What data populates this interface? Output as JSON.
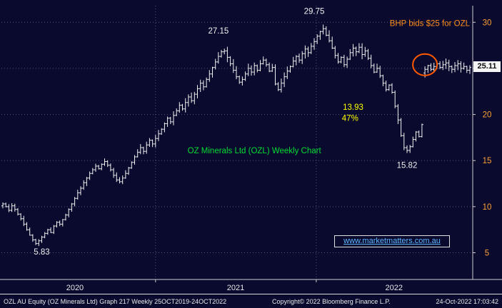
{
  "chart_data": {
    "type": "ohlc",
    "title": "OZ Minerals Ltd (OZL) Weekly Chart",
    "x_labels": [
      "2020",
      "2021",
      "2022"
    ],
    "y_ticks": [
      5,
      10,
      15,
      20,
      25,
      30
    ],
    "ylim": [
      2.1,
      31.8
    ],
    "grid": true,
    "weekly_closes": [
      10.3,
      10.0,
      9.6,
      10.1,
      9.7,
      9.2,
      8.7,
      8.1,
      7.5,
      6.9,
      6.4,
      6.0,
      6.3,
      6.7,
      7.1,
      7.5,
      7.2,
      7.9,
      8.3,
      8.1,
      8.6,
      9.1,
      9.7,
      10.3,
      10.9,
      11.5,
      12.0,
      12.6,
      13.1,
      13.6,
      14.0,
      14.4,
      14.1,
      14.6,
      14.9,
      14.5,
      14.0,
      13.4,
      12.9,
      12.7,
      13.1,
      13.6,
      14.2,
      14.8,
      15.4,
      15.9,
      16.4,
      16.0,
      16.7,
      17.2,
      16.8,
      17.4,
      17.9,
      18.4,
      19.0,
      19.6,
      19.2,
      19.9,
      20.4,
      21.0,
      20.6,
      21.3,
      21.9,
      21.5,
      22.2,
      22.8,
      23.4,
      23.0,
      23.8,
      24.4,
      25.1,
      25.7,
      26.3,
      26.8,
      26.9,
      26.2,
      25.5,
      24.8,
      24.1,
      23.5,
      23.8,
      24.4,
      25.0,
      24.6,
      25.3,
      24.8,
      25.5,
      25.9,
      25.4,
      24.7,
      25.1,
      23.3,
      22.7,
      23.4,
      24.1,
      24.7,
      25.2,
      25.8,
      26.3,
      25.9,
      26.6,
      27.1,
      26.7,
      27.4,
      27.9,
      28.5,
      29.0,
      29.3,
      28.6,
      28.0,
      27.2,
      26.4,
      25.7,
      26.2,
      25.4,
      26.0,
      26.7,
      27.2,
      26.8,
      27.3,
      26.5,
      26.9,
      26.1,
      25.3,
      24.6,
      25.0,
      24.2,
      23.4,
      22.7,
      23.2,
      22.4,
      20.9,
      19.4,
      17.7,
      16.4,
      16.1,
      16.5,
      17.3,
      18.1,
      17.6,
      18.9,
      24.9,
      25.3,
      24.9,
      25.2,
      25.5,
      25.1,
      25.4,
      25.6,
      25.2,
      24.9,
      25.3,
      25.5,
      25.0,
      25.2,
      24.8,
      25.11
    ],
    "key_extremes": [
      {
        "week": 11,
        "type": "low",
        "value": 5.83
      },
      {
        "week": 74,
        "type": "high",
        "value": 27.15
      },
      {
        "week": 107,
        "type": "high",
        "value": 29.75
      },
      {
        "week": 135,
        "type": "low",
        "value": 15.82
      }
    ],
    "last_price": 25.11,
    "last_price_label": "25.11",
    "annotations": [
      {
        "id": "peak-2022",
        "text": "29.75",
        "week": 104,
        "price": 30.9,
        "color": "#f0f0f0",
        "anchor": "middle"
      },
      {
        "id": "peak-2021",
        "text": "27.15",
        "week": 72,
        "price": 28.8,
        "color": "#f0f0f0",
        "anchor": "middle"
      },
      {
        "id": "low-2020",
        "text": "5.83",
        "week": 13,
        "price": 4.8,
        "color": "#f0f0f0",
        "anchor": "middle"
      },
      {
        "id": "low-2022",
        "text": "15.82",
        "week": 135,
        "price": 14.2,
        "color": "#f0f0f0",
        "anchor": "middle"
      },
      {
        "id": "retrace-value",
        "text": "13.93",
        "week": 117,
        "price": 20.5,
        "color": "#ffff00",
        "anchor": "middle"
      },
      {
        "id": "retrace-pct",
        "text": "47%",
        "week": 116,
        "price": 19.3,
        "color": "#ffff00",
        "anchor": "middle"
      },
      {
        "id": "bhp-news",
        "text": "BHP bids $25 for OZL",
        "week": 156,
        "price": 29.6,
        "color": "#ff8c1a",
        "anchor": "end"
      },
      {
        "id": "chart-title",
        "text": "OZ Minerals Ltd (OZL) Weekly Chart",
        "week": 84,
        "price": 15.8,
        "color": "#00dd33",
        "anchor": "middle"
      }
    ],
    "highlight_circle": {
      "week": 141,
      "price": 25.4,
      "color": "#ff5a00"
    },
    "legend_position": "none"
  },
  "watermark": {
    "text": "www.marketmatters.com.au"
  },
  "footer": {
    "left": "OZL AU Equity (OZ Minerals Ltd) Graph 217  Weekly 25OCT2019-24OCT2022",
    "center": "Copyright© 2022 Bloomberg Finance L.P.",
    "right": "24-Oct-2022 17:03:42"
  }
}
